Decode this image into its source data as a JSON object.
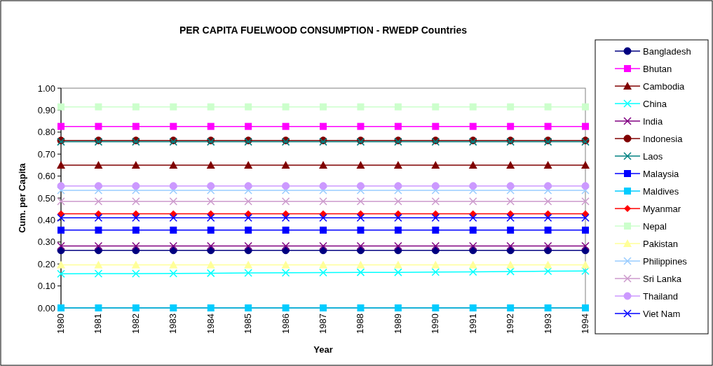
{
  "chart_data": {
    "type": "line",
    "title": "PER CAPITA FUELWOOD CONSUMPTION - RWEDP Countries",
    "xlabel": "Year",
    "ylabel": "Cum. per Capita",
    "categories": [
      "1980",
      "1981",
      "1982",
      "1983",
      "1984",
      "1985",
      "1986",
      "1987",
      "1988",
      "1989",
      "1990",
      "1991",
      "1992",
      "1993",
      "1994"
    ],
    "ylim": [
      0,
      1
    ],
    "yticks": [
      {
        "value": 0,
        "label": "0.00"
      },
      {
        "value": 0.1,
        "label": "0.10"
      },
      {
        "value": 0.2,
        "label": "0.20"
      },
      {
        "value": 0.3,
        "label": "0.30"
      },
      {
        "value": 0.4,
        "label": "0.40"
      },
      {
        "value": 0.5,
        "label": "0.50"
      },
      {
        "value": 0.6,
        "label": "0.60"
      },
      {
        "value": 0.7,
        "label": "0.70"
      },
      {
        "value": 0.8,
        "label": "0.80"
      },
      {
        "value": 0.9,
        "label": "0.90"
      },
      {
        "value": 1,
        "label": "1.00"
      }
    ],
    "grid": false,
    "legend": "right",
    "line_style": "solid",
    "series": [
      {
        "name": "Bangladesh",
        "color": "#000080",
        "marker": "circle",
        "values": [
          0.262,
          0.262,
          0.262,
          0.262,
          0.262,
          0.262,
          0.262,
          0.262,
          0.262,
          0.262,
          0.262,
          0.262,
          0.262,
          0.262,
          0.262
        ]
      },
      {
        "name": "Bhutan",
        "color": "#ff00ff",
        "marker": "square",
        "values": [
          0.826,
          0.826,
          0.826,
          0.826,
          0.826,
          0.826,
          0.826,
          0.826,
          0.826,
          0.826,
          0.826,
          0.826,
          0.826,
          0.826,
          0.826
        ]
      },
      {
        "name": "Cambodia",
        "color": "#800000",
        "marker": "triangle",
        "values": [
          0.65,
          0.65,
          0.65,
          0.65,
          0.65,
          0.65,
          0.65,
          0.65,
          0.65,
          0.65,
          0.65,
          0.65,
          0.65,
          0.65,
          0.65
        ]
      },
      {
        "name": "China",
        "color": "#00ffff",
        "marker": "cross",
        "values": [
          0.155,
          0.156,
          0.156,
          0.157,
          0.158,
          0.159,
          0.16,
          0.161,
          0.162,
          0.162,
          0.163,
          0.164,
          0.166,
          0.167,
          0.168
        ]
      },
      {
        "name": "India",
        "color": "#800080",
        "marker": "cross",
        "values": [
          0.282,
          0.282,
          0.282,
          0.282,
          0.282,
          0.282,
          0.282,
          0.282,
          0.282,
          0.282,
          0.282,
          0.282,
          0.282,
          0.282,
          0.282
        ]
      },
      {
        "name": "Indonesia",
        "color": "#800000",
        "marker": "circle",
        "values": [
          0.762,
          0.762,
          0.762,
          0.762,
          0.762,
          0.762,
          0.762,
          0.762,
          0.762,
          0.762,
          0.762,
          0.762,
          0.762,
          0.762,
          0.762
        ]
      },
      {
        "name": "Laos",
        "color": "#008080",
        "marker": "cross",
        "values": [
          0.756,
          0.756,
          0.756,
          0.756,
          0.756,
          0.756,
          0.756,
          0.756,
          0.756,
          0.756,
          0.756,
          0.756,
          0.756,
          0.756,
          0.756
        ]
      },
      {
        "name": "Malaysia",
        "color": "#0000ff",
        "marker": "square",
        "values": [
          0.354,
          0.354,
          0.354,
          0.354,
          0.354,
          0.354,
          0.354,
          0.354,
          0.354,
          0.354,
          0.354,
          0.354,
          0.354,
          0.354,
          0.354
        ]
      },
      {
        "name": "Maldives",
        "color": "#00ccff",
        "marker": "square",
        "values": [
          0,
          0,
          0,
          0,
          0,
          0,
          0,
          0,
          0,
          0,
          0,
          0,
          0,
          0,
          0
        ]
      },
      {
        "name": "Myanmar",
        "color": "#ff0000",
        "marker": "diamond",
        "values": [
          0.428,
          0.428,
          0.428,
          0.428,
          0.428,
          0.428,
          0.428,
          0.428,
          0.428,
          0.428,
          0.428,
          0.428,
          0.428,
          0.428,
          0.428
        ]
      },
      {
        "name": "Nepal",
        "color": "#ccffcc",
        "marker": "square",
        "values": [
          0.915,
          0.915,
          0.915,
          0.915,
          0.915,
          0.915,
          0.915,
          0.915,
          0.915,
          0.915,
          0.915,
          0.915,
          0.915,
          0.915,
          0.915
        ]
      },
      {
        "name": "Pakistan",
        "color": "#ffff99",
        "marker": "triangle",
        "values": [
          0.196,
          0.196,
          0.196,
          0.196,
          0.196,
          0.196,
          0.196,
          0.196,
          0.196,
          0.196,
          0.196,
          0.196,
          0.196,
          0.196,
          0.196
        ]
      },
      {
        "name": "Philippines",
        "color": "#99ccff",
        "marker": "cross",
        "values": [
          0.535,
          0.535,
          0.535,
          0.535,
          0.535,
          0.535,
          0.535,
          0.535,
          0.535,
          0.535,
          0.535,
          0.535,
          0.535,
          0.535,
          0.535
        ]
      },
      {
        "name": "Sri Lanka",
        "color": "#cc99cc",
        "marker": "cross",
        "values": [
          0.485,
          0.485,
          0.485,
          0.485,
          0.485,
          0.485,
          0.485,
          0.485,
          0.485,
          0.485,
          0.485,
          0.485,
          0.485,
          0.485,
          0.485
        ]
      },
      {
        "name": "Thailand",
        "color": "#cc99ff",
        "marker": "circle",
        "values": [
          0.555,
          0.555,
          0.555,
          0.555,
          0.555,
          0.555,
          0.555,
          0.555,
          0.555,
          0.555,
          0.555,
          0.555,
          0.555,
          0.555,
          0.555
        ]
      },
      {
        "name": "Viet Nam",
        "color": "#0000ff",
        "marker": "cross",
        "values": [
          0.41,
          0.41,
          0.41,
          0.41,
          0.41,
          0.41,
          0.41,
          0.41,
          0.41,
          0.41,
          0.41,
          0.41,
          0.41,
          0.41,
          0.41
        ]
      }
    ]
  }
}
